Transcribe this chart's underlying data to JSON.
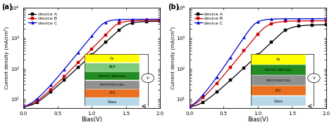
{
  "title_a": "(a)",
  "title_b": "(b)",
  "xlabel": "Bias(V)",
  "ylabel": "Current density (mA/cm²)",
  "xlim": [
    0.0,
    2.0
  ],
  "ylim_log": [
    5,
    10000
  ],
  "legend_labels": [
    "device A",
    "device B",
    "device C"
  ],
  "colors_a": [
    "#000000",
    "#cc0000",
    "#0000cc"
  ],
  "markers": [
    "s",
    "s",
    "^"
  ],
  "panel_a": {
    "device_A": [
      5.5,
      5.8,
      6.2,
      6.8,
      7.8,
      9.2,
      11.2,
      13.8,
      17.2,
      21.5,
      27.0,
      34.0,
      43.0,
      54.0,
      68.0,
      86.0,
      109.0,
      138.0,
      175.0,
      222.0,
      282.0,
      357.0,
      453.0,
      574.0,
      727.0,
      920.0,
      1164.0,
      1473.0,
      1864.0,
      2300.0,
      2700.0,
      3000.0,
      3200.0,
      3350.0,
      3450.0,
      3510.0,
      3550.0,
      3575.0,
      3592.0,
      3602.0,
      3610.0
    ],
    "device_B": [
      5.5,
      5.9,
      6.5,
      7.4,
      8.7,
      10.5,
      13.0,
      16.2,
      20.5,
      26.2,
      33.5,
      43.0,
      55.5,
      72.0,
      93.5,
      121.0,
      157.0,
      204.0,
      265.0,
      344.0,
      447.0,
      581.0,
      755.0,
      982.0,
      1277.0,
      1661.0,
      2160.0,
      2700.0,
      3100.0,
      3380.0,
      3560.0,
      3670.0,
      3740.0,
      3785.0,
      3815.0,
      3835.0,
      3848.0,
      3857.0,
      3863.0,
      3867.0,
      3870.0
    ],
    "device_C": [
      5.5,
      6.1,
      7.0,
      8.3,
      10.2,
      12.9,
      16.6,
      21.7,
      28.8,
      38.5,
      52.0,
      70.5,
      96.0,
      131.0,
      179.0,
      245.0,
      335.0,
      459.0,
      628.0,
      860.0,
      1177.0,
      1610.0,
      2200.0,
      2850.0,
      3350.0,
      3700.0,
      3900.0,
      4020.0,
      4090.0,
      4130.0,
      4155.0,
      4170.0,
      4180.0,
      4187.0,
      4192.0,
      4195.0,
      4197.0,
      4199.0,
      4200.0,
      4200.5,
      4201.0
    ]
  },
  "panel_b": {
    "device_A": [
      5.5,
      5.8,
      6.2,
      6.9,
      7.9,
      9.3,
      11.2,
      13.7,
      16.9,
      21.0,
      26.3,
      33.0,
      41.5,
      52.5,
      66.5,
      84.5,
      107.0,
      136.0,
      173.0,
      220.0,
      280.0,
      356.0,
      453.0,
      576.0,
      732.0,
      930.0,
      1182.0,
      1502.0,
      1800.0,
      2050.0,
      2250.0,
      2400.0,
      2510.0,
      2590.0,
      2645.0,
      2685.0,
      2712.0,
      2730.0,
      2742.0,
      2750.0,
      2756.0
    ],
    "device_B": [
      5.5,
      6.2,
      7.3,
      8.9,
      11.2,
      14.4,
      18.8,
      24.8,
      33.1,
      44.5,
      60.0,
      81.5,
      111.0,
      151.5,
      207.0,
      283.5,
      388.0,
      531.0,
      727.0,
      995.0,
      1362.0,
      1800.0,
      2250.0,
      2650.0,
      2980.0,
      3220.0,
      3390.0,
      3500.0,
      3575.0,
      3625.0,
      3660.0,
      3682.0,
      3698.0,
      3709.0,
      3717.0,
      3723.0,
      3727.0,
      3730.0,
      3732.0,
      3733.0,
      3734.0
    ],
    "device_C": [
      5.5,
      6.5,
      8.0,
      10.3,
      13.8,
      18.8,
      26.2,
      37.0,
      52.8,
      76.0,
      110.0,
      160.0,
      234.0,
      342.0,
      500.0,
      732.0,
      1070.0,
      1565.0,
      2200.0,
      2900.0,
      3450.0,
      3800.0,
      4020.0,
      4150.0,
      4230.0,
      4280.0,
      4310.0,
      4330.0,
      4343.0,
      4352.0,
      4358.0,
      4362.0,
      4365.0,
      4367.0,
      4369.0,
      4370.0,
      4371.0,
      4372.0,
      4372.5,
      4373.0,
      4373.0
    ]
  },
  "x_points": [
    0.0,
    0.05,
    0.1,
    0.15,
    0.2,
    0.25,
    0.3,
    0.35,
    0.4,
    0.45,
    0.5,
    0.55,
    0.6,
    0.65,
    0.7,
    0.75,
    0.8,
    0.85,
    0.9,
    0.95,
    1.0,
    1.05,
    1.1,
    1.15,
    1.2,
    1.25,
    1.3,
    1.35,
    1.4,
    1.45,
    1.5,
    1.55,
    1.6,
    1.65,
    1.7,
    1.75,
    1.8,
    1.85,
    1.9,
    1.95,
    2.0
  ],
  "inset_a": {
    "layers": [
      {
        "label": "Ca",
        "color": "#ffff00"
      },
      {
        "label": "BCP",
        "color": "#7CCC7C"
      },
      {
        "label": "P3HT:PC₆₁BM/CQDs",
        "color": "#228B22"
      },
      {
        "label": "PEDOT:PSS/CQDs",
        "color": "#909090"
      },
      {
        "label": "ITO",
        "color": "#E87020"
      },
      {
        "label": "Glass",
        "color": "#b8d8e8"
      }
    ]
  },
  "inset_b": {
    "layers": [
      {
        "label": "Au",
        "color": "#ffff00"
      },
      {
        "label": "P3HT:PC₆₁BM/CQDs",
        "color": "#228B22"
      },
      {
        "label": "PEDOT:PSS/CQDs",
        "color": "#909090"
      },
      {
        "label": "ITO",
        "color": "#E87020"
      },
      {
        "label": "Glass",
        "color": "#b8d8e8"
      }
    ]
  },
  "bg_color": "#ffffff",
  "marker_interval": 4,
  "marker_start": 0
}
